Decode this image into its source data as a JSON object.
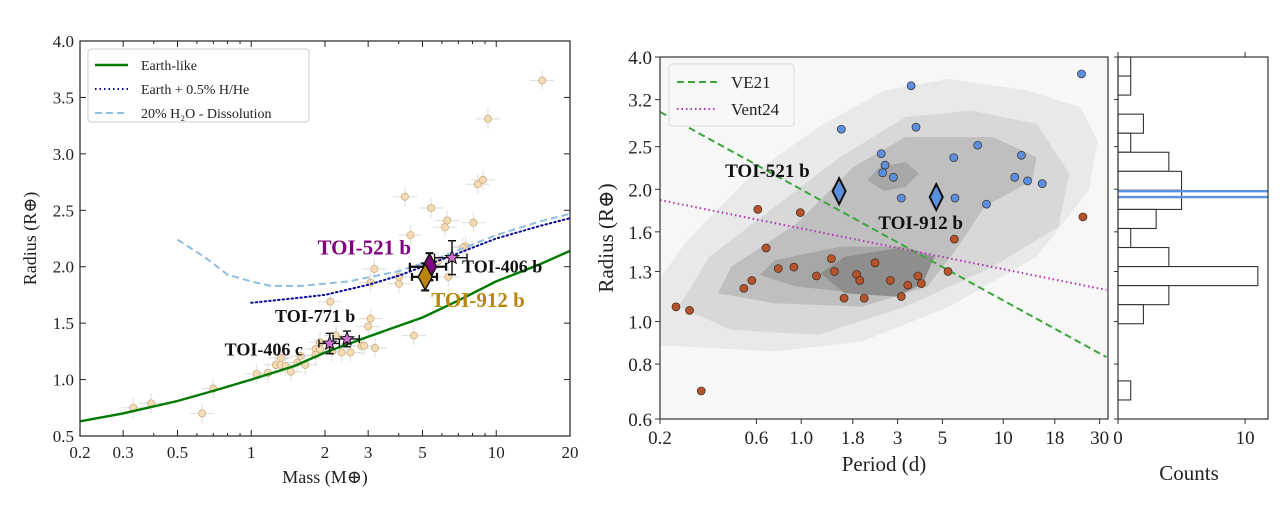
{
  "chart_data": [
    {
      "type": "scatter",
      "xlabel": "Mass (M⊕)",
      "ylabel": "Radius (R⊕)",
      "xscale": "log",
      "xlim": [
        0.2,
        20
      ],
      "ylim": [
        0.5,
        4.0
      ],
      "xticks": [
        0.2,
        0.3,
        0.5,
        1,
        2,
        3,
        5,
        10,
        20
      ],
      "xtick_labels": [
        "0.2",
        "0.3",
        "0.5",
        "1",
        "2",
        "3",
        "5",
        "10",
        "20"
      ],
      "yticks": [
        0.5,
        1.0,
        1.5,
        2.0,
        2.5,
        3.0,
        3.5,
        4.0
      ],
      "ytick_labels": [
        "0.5",
        "1.0",
        "1.5",
        "2.0",
        "2.5",
        "3.0",
        "3.5",
        "4.0"
      ],
      "legend_position": "top-left",
      "curves": [
        {
          "name": "Earth-like",
          "color": "#007a00",
          "style": "solid",
          "x": [
            0.2,
            0.3,
            0.5,
            0.7,
            1,
            1.5,
            2,
            3,
            5,
            7,
            10,
            15,
            20
          ],
          "y": [
            0.63,
            0.7,
            0.81,
            0.9,
            1.0,
            1.12,
            1.24,
            1.38,
            1.55,
            1.7,
            1.87,
            2.02,
            2.14
          ]
        },
        {
          "name": "Earth + 0.5% H/He",
          "color": "#0a0a9a",
          "style": "dotted",
          "x": [
            1,
            1.5,
            2,
            3,
            4,
            5,
            7,
            10,
            15,
            20
          ],
          "y": [
            1.68,
            1.72,
            1.75,
            1.84,
            1.92,
            2.0,
            2.12,
            2.25,
            2.36,
            2.43
          ]
        },
        {
          "name": "20% H₂O - Dissolution",
          "color": "#8fbfe0",
          "style": "dashed",
          "x": [
            0.5,
            0.65,
            0.8,
            1.0,
            1.2,
            1.6,
            2.5,
            4,
            6,
            10,
            15,
            20
          ],
          "y": [
            2.24,
            2.08,
            1.93,
            1.87,
            1.83,
            1.83,
            1.87,
            1.96,
            2.09,
            2.28,
            2.4,
            2.47
          ]
        }
      ],
      "background_points": {
        "color": "#f3dcb4",
        "x": [
          15.4,
          9.25,
          8.83,
          8.4,
          4.24,
          5.42,
          6.3,
          6.17,
          8.07,
          4.47,
          7.5,
          7.3,
          5.78,
          3.18,
          4.01,
          6.37,
          3.07,
          4.01,
          2.1,
          3.07,
          3.0,
          4.61,
          2.22,
          1.91,
          1.83,
          1.91,
          2.14,
          2.34,
          2.54,
          2.82,
          2.89,
          3.2,
          1.83,
          1.59,
          1.32,
          1.54,
          1.66,
          1.26,
          1.32,
          1.38,
          1.45,
          1.17,
          1.05,
          0.7,
          0.63,
          0.39,
          0.33
        ],
        "y": [
          3.65,
          3.31,
          2.77,
          2.73,
          2.62,
          2.52,
          2.41,
          2.35,
          2.39,
          2.28,
          2.18,
          2.17,
          2.05,
          1.98,
          1.91,
          1.91,
          1.86,
          1.85,
          1.69,
          1.54,
          1.47,
          1.39,
          1.39,
          1.33,
          1.27,
          1.27,
          1.25,
          1.24,
          1.24,
          1.3,
          1.3,
          1.28,
          1.22,
          1.21,
          1.19,
          1.15,
          1.13,
          1.13,
          1.13,
          1.12,
          1.07,
          1.06,
          1.05,
          0.92,
          0.7,
          0.79,
          0.75
        ]
      },
      "highlighted": [
        {
          "label": "TOI-521 b",
          "marker": "diamond",
          "color": "#800080",
          "label_color": "#800080",
          "x": 5.34,
          "y": 2.0,
          "xerr": 0.9,
          "yerr": 0.12
        },
        {
          "label": "TOI-912 b",
          "marker": "diamond",
          "color": "#b8860b",
          "label_color": "#b8860b",
          "x": 5.13,
          "y": 1.91,
          "xerr": 0.6,
          "yerr": 0.12
        },
        {
          "label": "TOI-406 b",
          "marker": "star",
          "color": "#d070d0",
          "label_color": "#111111",
          "x": 6.6,
          "y": 2.08,
          "xerr": 1.0,
          "yerr": 0.15
        },
        {
          "label": "TOI-771 b",
          "marker": "star",
          "color": "#d070d0",
          "label_color": "#111111",
          "x": 2.46,
          "y": 1.36,
          "xerr": 0.3,
          "yerr": 0.07
        },
        {
          "label": "TOI-406 c",
          "marker": "star",
          "color": "#d070d0",
          "label_color": "#111111",
          "x": 2.09,
          "y": 1.32,
          "xerr": 0.2,
          "yerr": 0.09
        }
      ]
    },
    {
      "type": "scatter",
      "xlabel": "Period (d)",
      "ylabel": "Radius (R⊕)",
      "xscale": "log",
      "yscale": "log",
      "xlim": [
        0.2,
        33
      ],
      "ylim": [
        0.6,
        4.0
      ],
      "xticks": [
        0.2,
        0.6,
        1.0,
        1.8,
        3,
        5,
        10,
        18,
        30
      ],
      "xtick_labels": [
        "0.2",
        "0.6",
        "1.0",
        "1.8",
        "3",
        "5",
        "10",
        "18",
        "30"
      ],
      "yticks": [
        0.6,
        0.8,
        1.0,
        1.3,
        1.6,
        2.0,
        2.5,
        3.2,
        4.0
      ],
      "ytick_labels": [
        "0.6",
        "0.8",
        "1.0",
        "1.3",
        "1.6",
        "2.0",
        "2.5",
        "3.2",
        "4.0"
      ],
      "legend_position": "top-left",
      "background": "density contours (grey)",
      "lines": [
        {
          "name": "VE21",
          "color": "#3da63d",
          "style": "dashed",
          "x": [
            0.2,
            32.4
          ],
          "y": [
            3.0,
            0.83
          ]
        },
        {
          "name": "Vent24",
          "color": "#b030b0",
          "style": "dotted",
          "x": [
            0.2,
            32.4
          ],
          "y": [
            1.89,
            1.18
          ]
        }
      ],
      "series": [
        {
          "color": "#5b8fe0",
          "x": [
            3.5,
            24.4,
            1.58,
            3.7,
            7.47,
            2.49,
            5.69,
            12.3,
            2.6,
            2.53,
            2.86,
            11.4,
            13.2,
            15.6,
            3.13,
            5.77,
            8.26
          ],
          "y": [
            3.44,
            3.66,
            2.74,
            2.77,
            2.52,
            2.41,
            2.36,
            2.39,
            2.27,
            2.18,
            2.13,
            2.13,
            2.09,
            2.06,
            1.91,
            1.91,
            1.85
          ]
        },
        {
          "color": "#b5532a",
          "x": [
            0.61,
            0.99,
            24.8,
            5.73,
            0.67,
            1.41,
            2.32,
            0.77,
            0.92,
            1.46,
            5.33,
            1.19,
            1.88,
            1.95,
            2.76,
            3.78,
            3.93,
            3.37,
            0.57,
            0.52,
            1.63,
            2.05,
            3.13,
            0.24,
            0.28,
            0.32
          ],
          "y": [
            1.8,
            1.77,
            1.73,
            1.54,
            1.47,
            1.39,
            1.36,
            1.32,
            1.33,
            1.3,
            1.3,
            1.27,
            1.28,
            1.24,
            1.24,
            1.27,
            1.22,
            1.21,
            1.24,
            1.19,
            1.13,
            1.13,
            1.14,
            1.08,
            1.06,
            0.695
          ]
        }
      ],
      "highlighted": [
        {
          "label": "TOI-521 b",
          "marker": "diamond",
          "color": "#5b8fe0",
          "x": 1.54,
          "y": 1.98
        },
        {
          "label": "TOI-912 b",
          "marker": "diamond",
          "color": "#5b8fe0",
          "x": 4.66,
          "y": 1.92
        }
      ]
    },
    {
      "type": "bar",
      "orientation": "horizontal",
      "xlabel": "Counts",
      "xlim": [
        0,
        11.8
      ],
      "xticks": [
        0,
        10
      ],
      "xtick_labels": [
        "0",
        "10"
      ],
      "ylim": [
        0.6,
        4.0
      ],
      "yscale": "log",
      "bin_range": [
        0.6,
        4.0
      ],
      "counts_from_top": [
        1,
        1,
        0,
        2,
        1,
        4,
        5,
        5,
        3,
        1,
        4,
        11,
        4,
        2,
        0,
        0,
        0,
        1,
        0
      ],
      "hlines": {
        "color": "#5b8fe0",
        "y": [
          1.98,
          1.92
        ]
      }
    }
  ]
}
